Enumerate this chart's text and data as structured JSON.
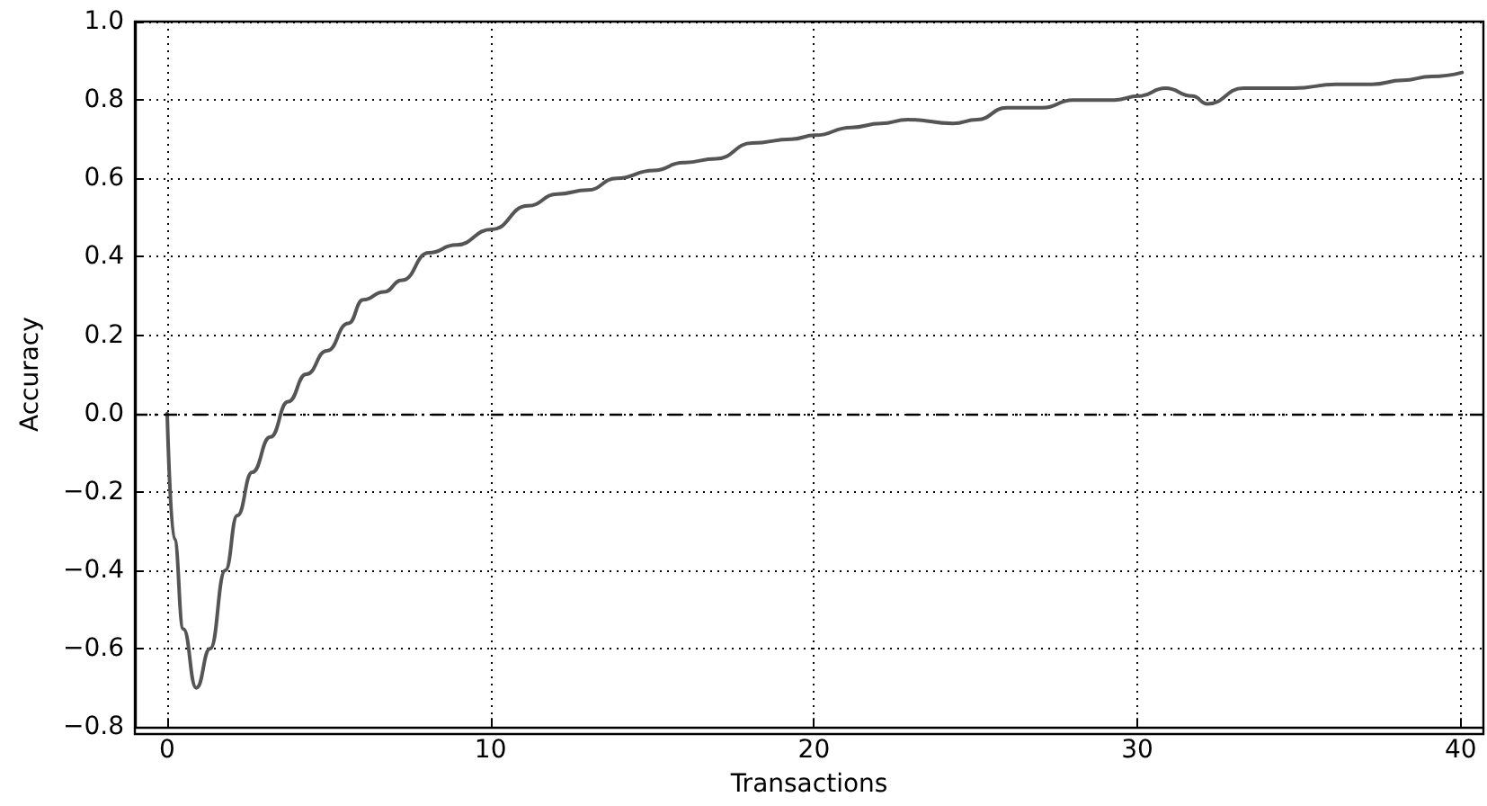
{
  "chart_data": {
    "type": "line",
    "xlabel": "Transactions",
    "ylabel": "Accuracy",
    "xlim": [
      -1,
      40.7
    ],
    "xticks": [
      0,
      10,
      20,
      30,
      40
    ],
    "ylim": [
      -0.8,
      1.0
    ],
    "yticks": [
      {
        "value": -0.8,
        "label": "−0.8"
      },
      {
        "value": -0.6,
        "label": "−0.6"
      },
      {
        "value": -0.4,
        "label": "−0.4"
      },
      {
        "value": -0.2,
        "label": "−0.2"
      },
      {
        "value": 0,
        "label": "0.0"
      },
      {
        "value": 0.2,
        "label": "0.2"
      },
      {
        "value": 0.4,
        "label": "0.4"
      },
      {
        "value": 0.6,
        "label": "0.6"
      },
      {
        "value": 0.8,
        "label": "0.8"
      },
      {
        "value": 1.0,
        "label": "1.0"
      }
    ],
    "grid": true,
    "marker": "none",
    "line_style": "solid",
    "ref_lines": [
      {
        "axis": "y",
        "value": 0,
        "color": "#000000",
        "line_style": "dashed"
      }
    ],
    "series": [
      {
        "color": "#555555",
        "x": [
          0,
          0.22,
          0.5,
          0.9,
          1.33,
          1.8,
          2.17,
          2.63,
          3.19,
          3.74,
          4.3,
          4.94,
          5.6,
          6.06,
          6.7,
          7.26,
          8.09,
          8.93,
          10.04,
          11.15,
          12.07,
          13,
          13.9,
          15.04,
          15.96,
          16.98,
          18.09,
          19.3,
          20.04,
          21.15,
          22.07,
          22.9,
          24.3,
          25.04,
          25.96,
          27.07,
          28,
          29.3,
          30.04,
          30.87,
          31.7,
          32.17,
          33.28,
          34.85,
          36.15,
          37.26,
          38.2,
          39.1,
          40.04
        ],
        "values": [
          0,
          -0.32,
          -0.55,
          -0.7,
          -0.6,
          -0.4,
          -0.26,
          -0.15,
          -0.06,
          0.03,
          0.1,
          0.16,
          0.23,
          0.29,
          0.31,
          0.34,
          0.41,
          0.43,
          0.47,
          0.53,
          0.56,
          0.57,
          0.6,
          0.62,
          0.64,
          0.65,
          0.69,
          0.7,
          0.71,
          0.73,
          0.74,
          0.75,
          0.74,
          0.75,
          0.78,
          0.78,
          0.8,
          0.8,
          0.81,
          0.83,
          0.81,
          0.79,
          0.83,
          0.83,
          0.84,
          0.84,
          0.85,
          0.86,
          0.87
        ]
      }
    ]
  }
}
